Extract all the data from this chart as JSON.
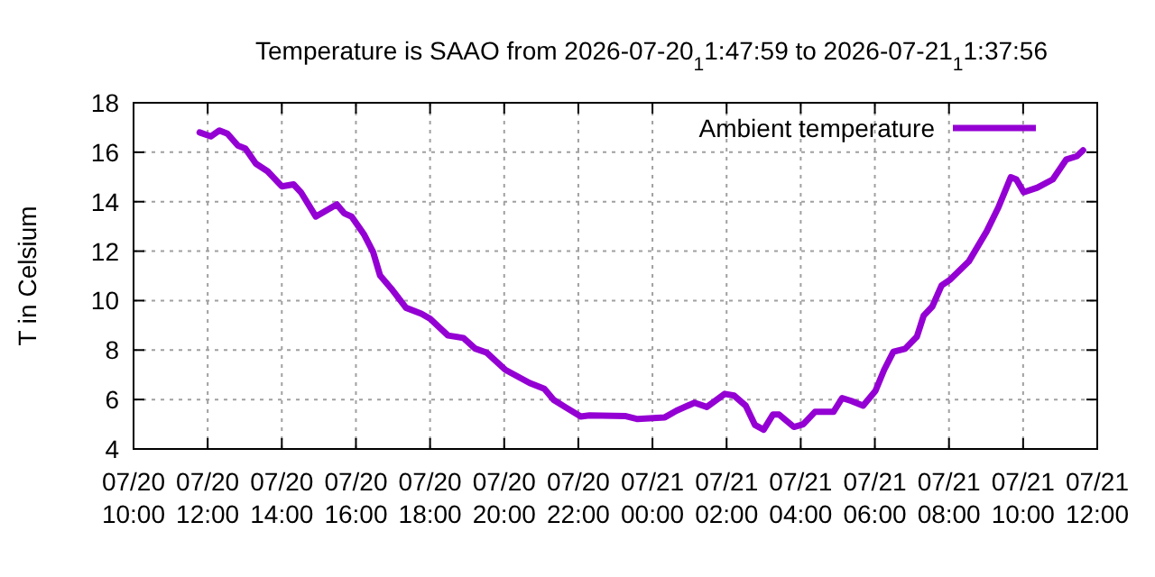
{
  "chart_data": {
    "type": "line",
    "title": "Temperature is SAAO from 2026-07-20$_{1}$1:47:59 to 2026-07-21$_{1}$1:37:56",
    "ylabel": "T in Celsium",
    "xlim": [
      "2026-07-20T10:00",
      "2026-07-21T12:00"
    ],
    "xticks": [
      {
        "value": "2026-07-20T10:00",
        "label": "07/20\n10:00"
      },
      {
        "value": "2026-07-20T12:00",
        "label": "07/20\n12:00"
      },
      {
        "value": "2026-07-20T14:00",
        "label": "07/20\n14:00"
      },
      {
        "value": "2026-07-20T16:00",
        "label": "07/20\n16:00"
      },
      {
        "value": "2026-07-20T18:00",
        "label": "07/20\n18:00"
      },
      {
        "value": "2026-07-20T20:00",
        "label": "07/20\n20:00"
      },
      {
        "value": "2026-07-20T22:00",
        "label": "07/20\n22:00"
      },
      {
        "value": "2026-07-21T00:00",
        "label": "07/21\n00:00"
      },
      {
        "value": "2026-07-21T02:00",
        "label": "07/21\n02:00"
      },
      {
        "value": "2026-07-21T04:00",
        "label": "07/21\n04:00"
      },
      {
        "value": "2026-07-21T06:00",
        "label": "07/21\n06:00"
      },
      {
        "value": "2026-07-21T08:00",
        "label": "07/21\n08:00"
      },
      {
        "value": "2026-07-21T10:00",
        "label": "07/21\n10:00"
      },
      {
        "value": "2026-07-21T12:00",
        "label": "07/21\n12:00"
      }
    ],
    "ylim": [
      4,
      18
    ],
    "yticks": [
      4,
      6,
      8,
      10,
      12,
      14,
      16,
      18
    ],
    "grid": true,
    "legend": "top right",
    "line_style": "solid",
    "x": [
      "2026-07-20T11:47",
      "2026-07-20T12:05",
      "2026-07-20T12:19",
      "2026-07-20T12:32",
      "2026-07-20T12:49",
      "2026-07-20T13:01",
      "2026-07-20T13:18",
      "2026-07-20T13:37",
      "2026-07-20T14:00",
      "2026-07-20T14:19",
      "2026-07-20T14:31",
      "2026-07-20T14:55",
      "2026-07-20T15:29",
      "2026-07-20T15:41",
      "2026-07-20T15:53",
      "2026-07-20T16:13",
      "2026-07-20T16:28",
      "2026-07-20T16:39",
      "2026-07-20T16:57",
      "2026-07-20T17:21",
      "2026-07-20T17:46",
      "2026-07-20T18:00",
      "2026-07-20T18:29",
      "2026-07-20T18:54",
      "2026-07-20T19:13",
      "2026-07-20T19:32",
      "2026-07-20T20:02",
      "2026-07-20T20:41",
      "2026-07-20T21:05",
      "2026-07-20T21:20",
      "2026-07-20T21:39",
      "2026-07-20T22:04",
      "2026-07-20T22:18",
      "2026-07-20T23:17",
      "2026-07-20T23:36",
      "2026-07-21T00:20",
      "2026-07-21T00:39",
      "2026-07-21T01:08",
      "2026-07-21T01:28",
      "2026-07-21T01:57",
      "2026-07-21T02:12",
      "2026-07-21T02:31",
      "2026-07-21T02:46",
      "2026-07-21T03:00",
      "2026-07-21T03:15",
      "2026-07-21T03:25",
      "2026-07-21T03:49",
      "2026-07-21T04:04",
      "2026-07-21T04:23",
      "2026-07-21T04:53",
      "2026-07-21T05:07",
      "2026-07-21T05:22",
      "2026-07-21T05:41",
      "2026-07-21T06:01",
      "2026-07-21T06:15",
      "2026-07-21T06:30",
      "2026-07-21T06:49",
      "2026-07-21T07:08",
      "2026-07-21T07:19",
      "2026-07-21T07:33",
      "2026-07-21T07:48",
      "2026-07-21T08:02",
      "2026-07-21T08:32",
      "2026-07-21T09:01",
      "2026-07-21T09:20",
      "2026-07-21T09:40",
      "2026-07-21T09:49",
      "2026-07-21T10:01",
      "2026-07-21T10:23",
      "2026-07-21T10:48",
      "2026-07-21T11:10",
      "2026-07-21T11:27",
      "2026-07-21T11:37"
    ],
    "series": [
      {
        "name": "Ambient temperature",
        "color": "#9400d3",
        "values": [
          16.8,
          16.64,
          16.88,
          16.75,
          16.27,
          16.15,
          15.54,
          15.23,
          14.62,
          14.7,
          14.38,
          13.4,
          13.89,
          13.53,
          13.4,
          12.68,
          11.95,
          11.02,
          10.49,
          9.71,
          9.47,
          9.27,
          8.59,
          8.49,
          8.06,
          7.89,
          7.2,
          6.67,
          6.43,
          5.99,
          5.69,
          5.31,
          5.36,
          5.33,
          5.21,
          5.28,
          5.55,
          5.87,
          5.7,
          6.23,
          6.16,
          5.75,
          4.97,
          4.78,
          5.39,
          5.39,
          4.89,
          5.0,
          5.5,
          5.5,
          6.06,
          5.94,
          5.75,
          6.35,
          7.2,
          7.93,
          8.05,
          8.54,
          9.39,
          9.76,
          10.61,
          10.85,
          11.58,
          12.8,
          13.77,
          14.99,
          14.9,
          14.38,
          14.57,
          14.9,
          15.71,
          15.84,
          16.08
        ]
      }
    ]
  }
}
